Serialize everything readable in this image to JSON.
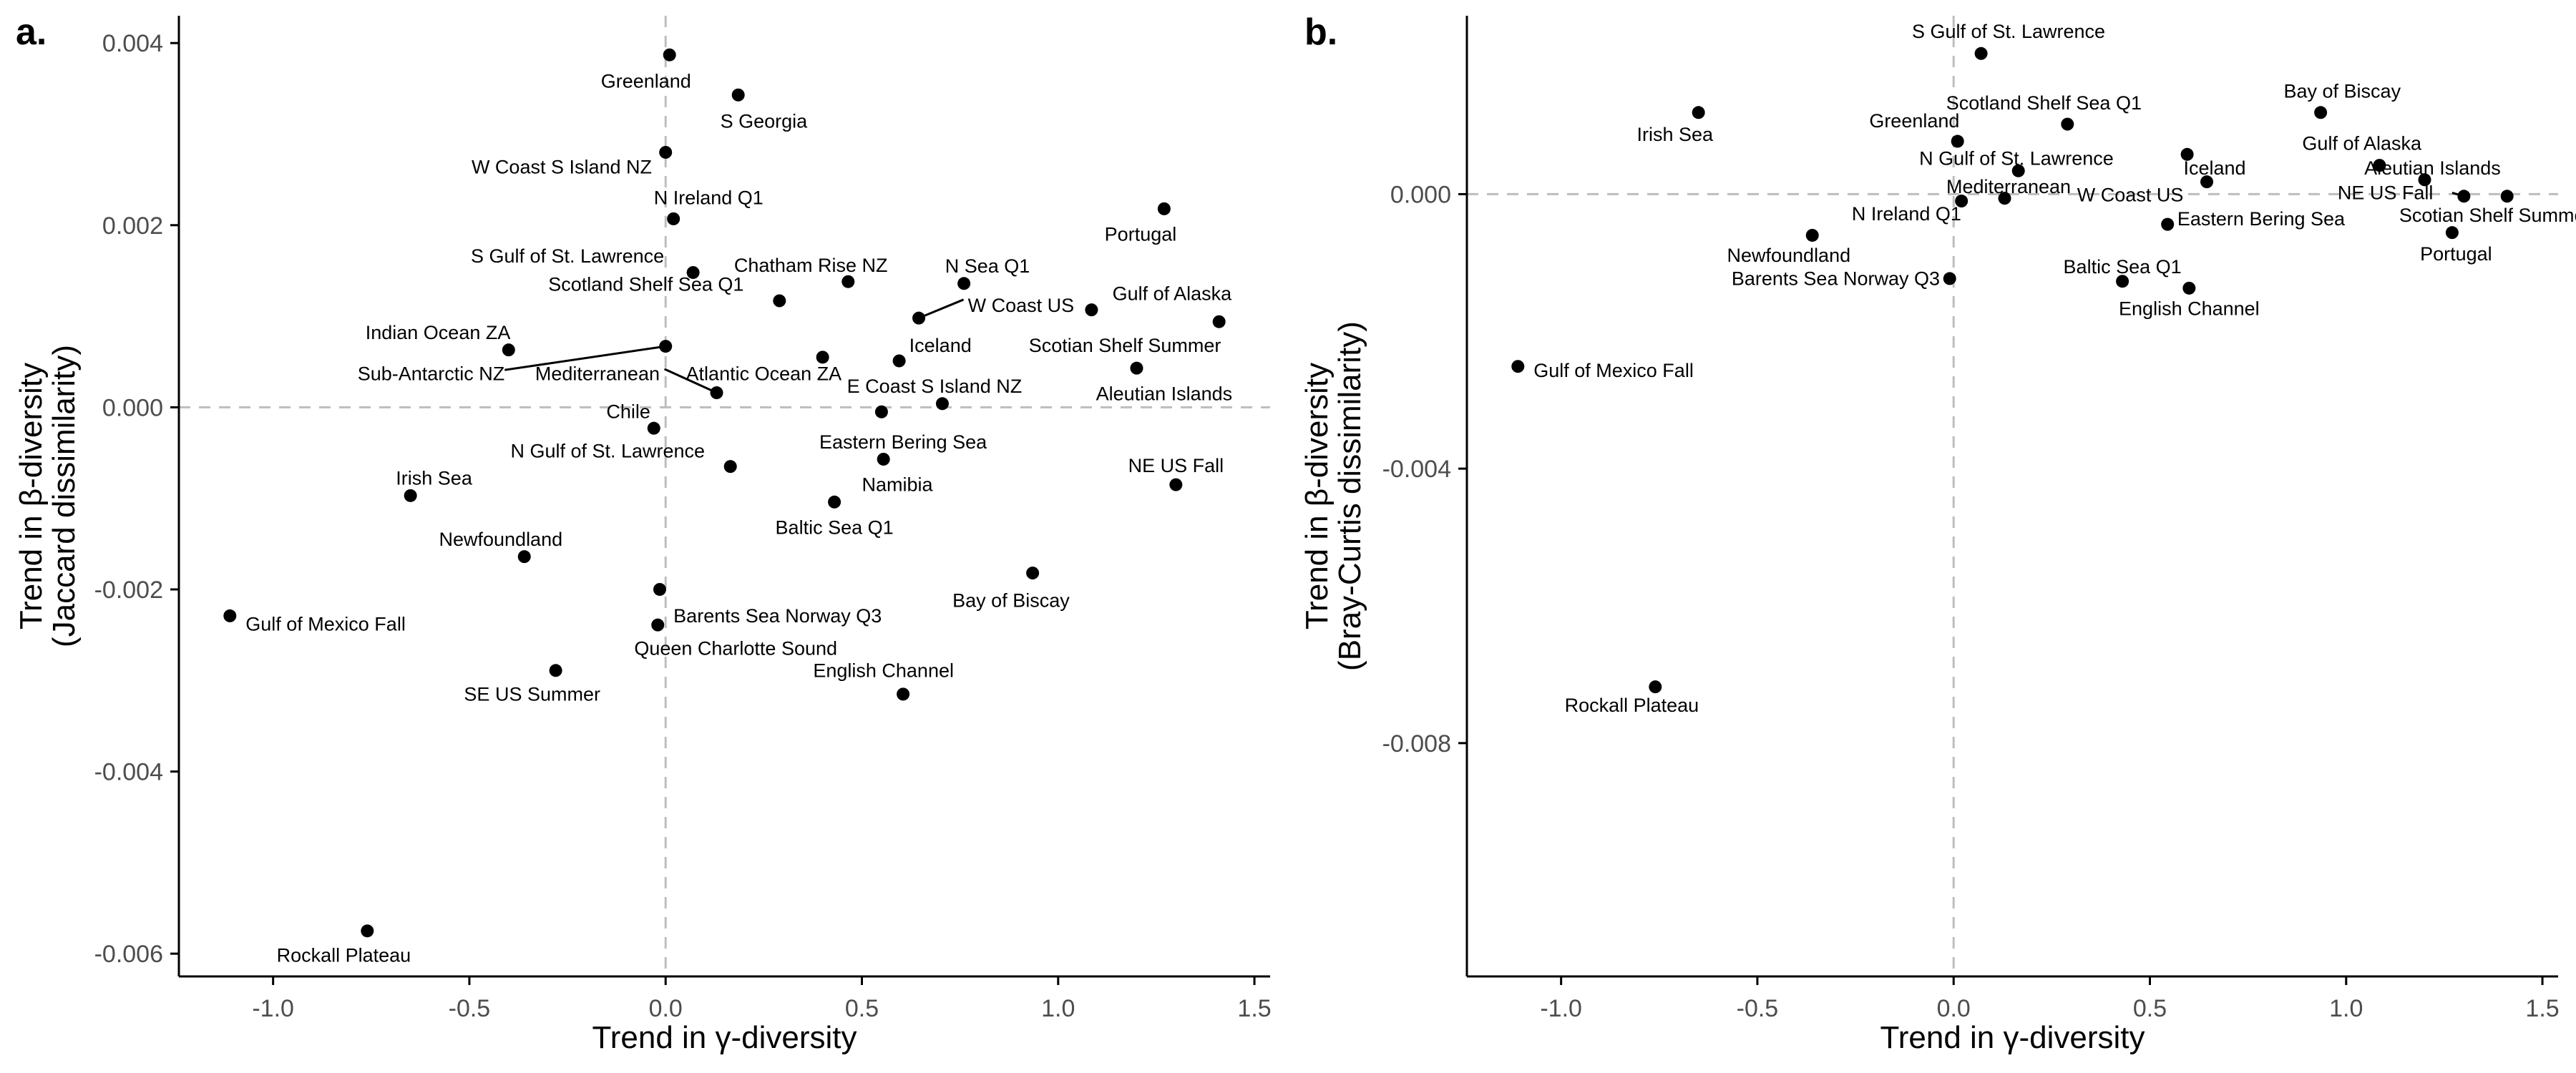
{
  "chart_data": [
    {
      "type": "scatter",
      "panel_label": "a.",
      "xlabel": "Trend in γ-diversity",
      "ylabel_lines": [
        "Trend in β-diversity",
        "(Jaccard dissimilarity)"
      ],
      "xlim": [
        -1.24,
        1.54
      ],
      "ylim": [
        -0.00625,
        0.0043
      ],
      "xticks": [
        -1.0,
        -0.5,
        0.0,
        0.5,
        1.0,
        1.5
      ],
      "xtick_labels": [
        "-1.0",
        "-0.5",
        "0.0",
        "0.5",
        "1.0",
        "1.5"
      ],
      "yticks": [
        -0.006,
        -0.004,
        -0.002,
        0.0,
        0.002,
        0.004
      ],
      "ytick_labels": [
        "-0.006",
        "-0.004",
        "-0.002",
        "0.000",
        "0.002",
        "0.004"
      ],
      "reference_lines": {
        "x": 0,
        "y": 0
      },
      "grid": false,
      "points": [
        {
          "name": "Greenland",
          "x": 0.01,
          "y": 0.00387,
          "lx": -0.05,
          "ly": 0.00358,
          "anchor": "middle"
        },
        {
          "name": "S Georgia",
          "x": 0.185,
          "y": 0.00343,
          "lx": 0.25,
          "ly": 0.00314,
          "anchor": "middle"
        },
        {
          "name": "W Coast S Island NZ",
          "x": 0.0,
          "y": 0.0028,
          "lx": -0.035,
          "ly": 0.00264,
          "anchor": "end"
        },
        {
          "name": "N Ireland Q1",
          "x": 0.02,
          "y": 0.00207,
          "lx": -0.03,
          "ly": 0.0023,
          "anchor": "start"
        },
        {
          "name": "Portugal",
          "x": 1.27,
          "y": 0.00218,
          "lx": 1.21,
          "ly": 0.0019,
          "anchor": "middle"
        },
        {
          "name": "S Gulf of St. Lawrence",
          "x": 0.07,
          "y": 0.00148,
          "lx": -0.25,
          "ly": 0.00166,
          "anchor": "middle"
        },
        {
          "name": "Chatham Rise NZ",
          "x": 0.465,
          "y": 0.00138,
          "lx": 0.37,
          "ly": 0.00156,
          "anchor": "middle"
        },
        {
          "name": "N Sea Q1",
          "x": 0.76,
          "y": 0.00136,
          "lx": 0.82,
          "ly": 0.00155,
          "anchor": "middle"
        },
        {
          "name": "Gulf of Alaska",
          "x": 1.085,
          "y": 0.00107,
          "lx": 1.29,
          "ly": 0.00125,
          "anchor": "middle"
        },
        {
          "name": "W Coast US",
          "x": 0.645,
          "y": 0.00098,
          "lx": 0.77,
          "ly": 0.00112,
          "anchor": "start",
          "leader": true
        },
        {
          "name": "Scotland Shelf Sea Q1",
          "x": 0.29,
          "y": 0.00117,
          "lx": 0.23,
          "ly": 0.00135,
          "anchor": "middle",
          "label_x": -0.05,
          "label_y": 0.00138,
          "label_ty": 0.00135
        },
        {
          "name": "Scotian Shelf Summer",
          "x": 1.41,
          "y": 0.00094,
          "lx": 1.17,
          "ly": 0.00068,
          "anchor": "middle"
        },
        {
          "name": "Indian Ocean ZA",
          "x": -0.4,
          "y": 0.00063,
          "lx": -0.58,
          "ly": 0.00082,
          "anchor": "middle"
        },
        {
          "name": "Iceland",
          "x": 0.595,
          "y": 0.00051,
          "lx": 0.7,
          "ly": 0.00068,
          "anchor": "middle"
        },
        {
          "name": "Scotland Shelf Sea Q1 point",
          "x": 0.0,
          "y": 0.00067,
          "lx": 0.0,
          "ly": 0.00067,
          "anchor": "none",
          "leader_to": [
            -0.41,
            0.00041
          ],
          "hidden_label": true
        },
        {
          "name": "Sub-Antarctic NZ",
          "x": -0.41,
          "y": 0.00041,
          "lx": -0.41,
          "ly": 0.00037,
          "anchor": "end",
          "dot": false
        },
        {
          "name": "Mediterranean",
          "x": 0.13,
          "y": 0.00016,
          "lx": -0.015,
          "ly": 0.00037,
          "anchor": "end",
          "leader_to": [
            -0.003,
            0.00042
          ]
        },
        {
          "name": "Atlantic Ocean ZA",
          "x": 0.4,
          "y": 0.00055,
          "lx": 0.25,
          "ly": 0.00037,
          "anchor": "middle"
        },
        {
          "name": "Aleutian Islands",
          "x": 1.2,
          "y": 0.00043,
          "lx": 1.27,
          "ly": 0.00015,
          "anchor": "middle"
        },
        {
          "name": "E Coast S Island NZ",
          "x": 0.705,
          "y": 4e-05,
          "lx": 0.685,
          "ly": 0.00023,
          "anchor": "middle"
        },
        {
          "name": "Chile",
          "x": -0.03,
          "y": -0.00023,
          "lx": -0.095,
          "ly": -5e-05,
          "anchor": "middle"
        },
        {
          "name": "Eastern Bering Sea",
          "x": 0.55,
          "y": -5e-05,
          "lx": 0.605,
          "ly": -0.00038,
          "anchor": "middle"
        },
        {
          "name": "N Gulf of St. Lawrence",
          "x": 0.165,
          "y": -0.00065,
          "lx": 0.1,
          "ly": -0.00048,
          "anchor": "end"
        },
        {
          "name": "Irish Sea",
          "x": -0.65,
          "y": -0.00097,
          "lx": -0.59,
          "ly": -0.00078,
          "anchor": "middle"
        },
        {
          "name": "Namibia",
          "x": 0.555,
          "y": -0.00057,
          "lx": 0.5,
          "ly": -0.00085,
          "anchor": "start"
        },
        {
          "name": "NE US Fall",
          "x": 1.3,
          "y": -0.00085,
          "lx": 1.3,
          "ly": -0.00064,
          "anchor": "middle"
        },
        {
          "name": "Baltic Sea Q1",
          "x": 0.43,
          "y": -0.00104,
          "lx": 0.43,
          "ly": -0.00132,
          "anchor": "middle"
        },
        {
          "name": "Newfoundland",
          "x": -0.36,
          "y": -0.00164,
          "lx": -0.42,
          "ly": -0.00145,
          "anchor": "middle"
        },
        {
          "name": "Bay of Biscay",
          "x": 0.935,
          "y": -0.00182,
          "lx": 0.88,
          "ly": -0.00212,
          "anchor": "middle"
        },
        {
          "name": "Barents Sea Norway Q3",
          "x": -0.015,
          "y": -0.002,
          "lx": 0.02,
          "ly": -0.00229,
          "anchor": "start"
        },
        {
          "name": "Gulf of Mexico Fall",
          "x": -1.11,
          "y": -0.00229,
          "lx": -1.07,
          "ly": -0.00238,
          "anchor": "start"
        },
        {
          "name": "Queen Charlotte Sound",
          "x": -0.02,
          "y": -0.00239,
          "lx": -0.08,
          "ly": -0.00265,
          "anchor": "start"
        },
        {
          "name": "SE US Summer",
          "x": -0.28,
          "y": -0.00289,
          "lx": -0.34,
          "ly": -0.00315,
          "anchor": "middle"
        },
        {
          "name": "English Channel",
          "x": 0.605,
          "y": -0.00315,
          "lx": 0.555,
          "ly": -0.00289,
          "anchor": "middle"
        },
        {
          "name": "Rockall Plateau",
          "x": -0.76,
          "y": -0.00575,
          "lx": -0.82,
          "ly": -0.00602,
          "anchor": "middle"
        }
      ]
    },
    {
      "type": "scatter",
      "panel_label": "b.",
      "xlabel": "Trend in γ-diversity",
      "ylabel_lines": [
        "Trend in β-diversity",
        "(Bray-Curtis dissimilarity)"
      ],
      "xlim": [
        -1.24,
        1.54
      ],
      "ylim": [
        -0.0114,
        0.0026
      ],
      "xticks": [
        -1.0,
        -0.5,
        0.0,
        0.5,
        1.0,
        1.5
      ],
      "xtick_labels": [
        "-1.0",
        "-0.5",
        "0.0",
        "0.5",
        "1.0",
        "1.5"
      ],
      "yticks": [
        -0.008,
        -0.004,
        0.0
      ],
      "ytick_labels": [
        "-0.008",
        "-0.004",
        "0.000"
      ],
      "reference_lines": {
        "x": 0,
        "y": 0
      },
      "grid": false,
      "points": [
        {
          "name": "S Gulf of St. Lawrence",
          "x": 0.07,
          "y": 0.00205,
          "lx": 0.14,
          "ly": 0.00237,
          "anchor": "middle"
        },
        {
          "name": "Irish Sea",
          "x": -0.65,
          "y": 0.00119,
          "lx": -0.71,
          "ly": 0.00087,
          "anchor": "middle"
        },
        {
          "name": "Bay of Biscay",
          "x": 0.935,
          "y": 0.00119,
          "lx": 0.99,
          "ly": 0.0015,
          "anchor": "middle"
        },
        {
          "name": "Scotland Shelf Sea Q1",
          "x": 0.29,
          "y": 0.00102,
          "lx": 0.23,
          "ly": 0.00133,
          "anchor": "middle"
        },
        {
          "name": "Greenland",
          "x": 0.01,
          "y": 0.00077,
          "lx": -0.1,
          "ly": 0.00107,
          "anchor": "middle"
        },
        {
          "name": "Gulf of Alaska",
          "x": 1.085,
          "y": 0.00042,
          "lx": 1.04,
          "ly": 0.00074,
          "anchor": "middle"
        },
        {
          "name": "N Gulf of St. Lawrence",
          "x": 0.165,
          "y": 0.00034,
          "lx": 0.16,
          "ly": 0.00052,
          "anchor": "middle"
        },
        {
          "name": "Iceland",
          "x": 0.595,
          "y": 0.00058,
          "lx": 0.665,
          "ly": 0.00038,
          "anchor": "middle"
        },
        {
          "name": "Aleutian Islands",
          "x": 1.2,
          "y": 0.00021,
          "lx": 1.22,
          "ly": 0.00038,
          "anchor": "middle"
        },
        {
          "name": "Mediterranean",
          "x": 0.13,
          "y": -6e-05,
          "lx": 0.14,
          "ly": 0.00011,
          "anchor": "middle"
        },
        {
          "name": "W Coast US",
          "x": 0.645,
          "y": 0.00018,
          "lx": 0.45,
          "ly": -1e-05,
          "anchor": "middle"
        },
        {
          "name": "NE US Fall",
          "x": 1.3,
          "y": -3e-05,
          "lx": 1.1,
          "ly": 2e-05,
          "anchor": "middle",
          "leader_to": [
            1.27,
            2e-05
          ]
        },
        {
          "name": "Scotian Shelf Summer",
          "x": 1.41,
          "y": -3e-05,
          "lx": 1.38,
          "ly": -0.00031,
          "anchor": "middle"
        },
        {
          "name": "N Ireland Q1",
          "x": 0.02,
          "y": -0.0001,
          "lx": -0.12,
          "ly": -0.00029,
          "anchor": "middle"
        },
        {
          "name": "Eastern Bering Sea",
          "x": 0.545,
          "y": -0.00044,
          "lx": 0.57,
          "ly": -0.00036,
          "anchor": "start"
        },
        {
          "name": "Newfoundland",
          "x": -0.36,
          "y": -0.0006,
          "lx": -0.42,
          "ly": -0.00089,
          "anchor": "middle"
        },
        {
          "name": "Portugal",
          "x": 1.27,
          "y": -0.00056,
          "lx": 1.28,
          "ly": -0.00087,
          "anchor": "middle"
        },
        {
          "name": "Baltic Sea Q1",
          "x": 0.43,
          "y": -0.00127,
          "lx": 0.43,
          "ly": -0.00106,
          "anchor": "middle"
        },
        {
          "name": "Barents Sea Norway Q3",
          "x": -0.01,
          "y": -0.00123,
          "lx": -0.035,
          "ly": -0.00123,
          "anchor": "end"
        },
        {
          "name": "English Channel",
          "x": 0.6,
          "y": -0.00137,
          "lx": 0.6,
          "ly": -0.00167,
          "anchor": "middle"
        },
        {
          "name": "Gulf of Mexico Fall",
          "x": -1.11,
          "y": -0.00251,
          "lx": -1.07,
          "ly": -0.00257,
          "anchor": "start"
        },
        {
          "name": "Rockall Plateau",
          "x": -0.76,
          "y": -0.00718,
          "lx": -0.82,
          "ly": -0.00745,
          "anchor": "middle"
        }
      ]
    }
  ]
}
